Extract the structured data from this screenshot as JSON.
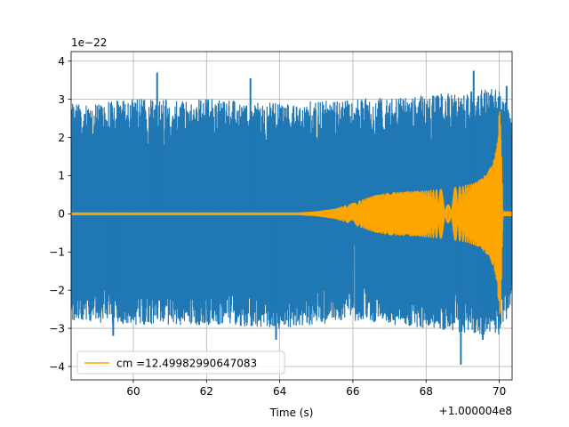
{
  "chart_data": {
    "type": "line",
    "title": "",
    "xlabel": "Time (s)",
    "ylabel": "",
    "x_offset_label": "+1.000004e8",
    "y_scale_label": "1e−22",
    "xlim": [
      58.3,
      70.35
    ],
    "ylim": [
      -4.35,
      4.25
    ],
    "x_ticks": [
      60,
      62,
      64,
      66,
      68,
      70
    ],
    "x_tick_labels": [
      "60",
      "62",
      "64",
      "66",
      "68",
      "70"
    ],
    "y_ticks": [
      -4,
      -3,
      -2,
      -1,
      0,
      1,
      2,
      3,
      4
    ],
    "y_tick_labels": [
      "−4",
      "−3",
      "−2",
      "−1",
      "0",
      "1",
      "2",
      "3",
      "4"
    ],
    "grid": true,
    "legend_position": "lower-left",
    "series": [
      {
        "color": "#1f77b4",
        "description_kind": "noise",
        "envelope_x": [
          58.3,
          60,
          62,
          64,
          66,
          68,
          70,
          70.35
        ],
        "envelope_hi": [
          2.9,
          3.0,
          3.0,
          2.9,
          3.0,
          3.1,
          3.3,
          2.5
        ],
        "envelope_lo": [
          -2.8,
          -2.9,
          -2.9,
          -3.0,
          -2.8,
          -3.0,
          -3.2,
          -2.4
        ],
        "spikes": [
          {
            "x": 60.65,
            "y": 3.7
          },
          {
            "x": 63.2,
            "y": 3.55
          },
          {
            "x": 69.3,
            "y": 3.75
          },
          {
            "x": 70.2,
            "y": 3.35
          },
          {
            "x": 59.45,
            "y": -3.2
          },
          {
            "x": 63.9,
            "y": -3.3
          },
          {
            "x": 68.95,
            "y": -3.95
          },
          {
            "x": 69.55,
            "y": -3.3
          }
        ]
      },
      {
        "name": "cm =12.49982990647083",
        "color": "#ffa500",
        "description_kind": "chirp",
        "envelope_x": [
          58.3,
          64.5,
          65.0,
          65.5,
          66.0,
          66.5,
          67.0,
          67.5,
          68.0,
          68.5,
          69.0,
          69.3,
          69.5,
          69.7,
          69.85,
          69.95,
          70.0,
          70.03,
          70.1,
          70.35
        ],
        "envelope_amp": [
          0.02,
          0.02,
          0.05,
          0.12,
          0.27,
          0.45,
          0.55,
          0.57,
          0.6,
          0.65,
          0.72,
          0.8,
          0.9,
          1.1,
          1.4,
          1.9,
          2.7,
          2.8,
          0.05,
          0.05
        ]
      }
    ]
  }
}
